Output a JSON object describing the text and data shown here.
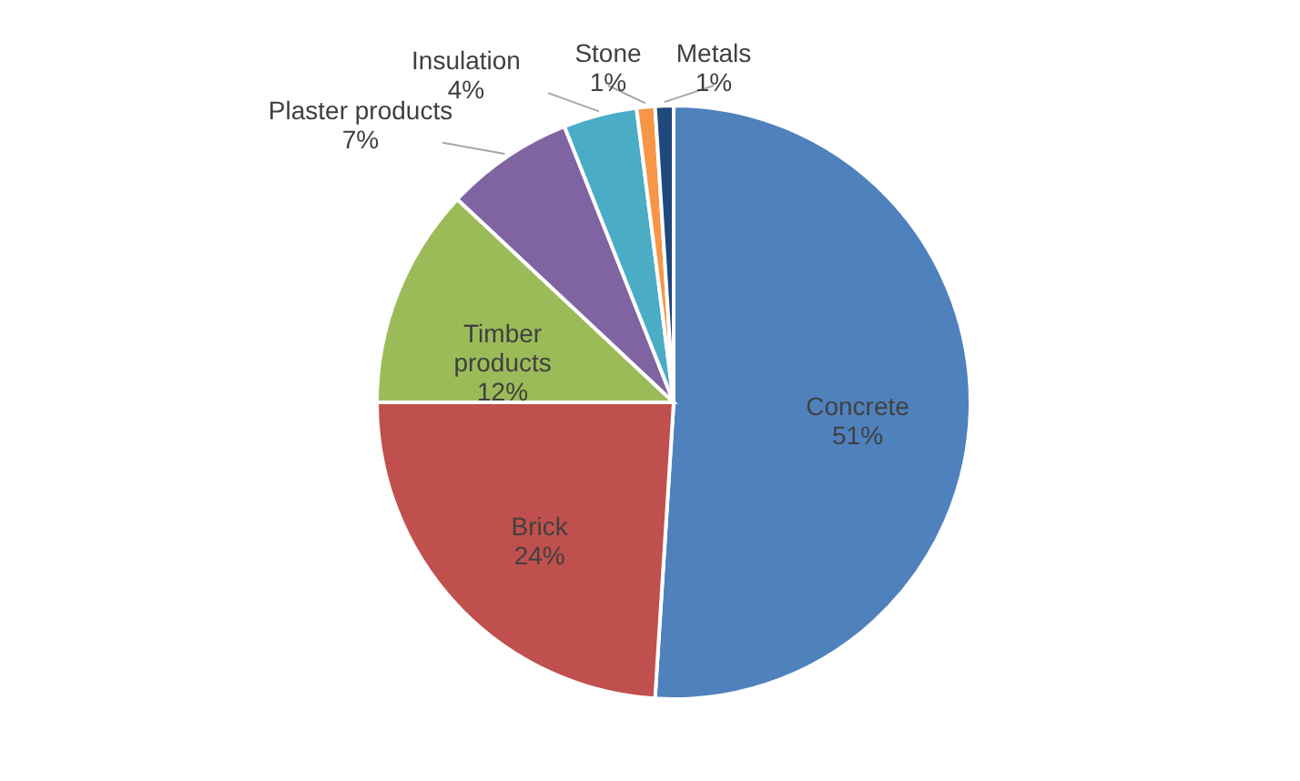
{
  "chart_data": {
    "type": "pie",
    "categories": [
      "Concrete",
      "Brick",
      "Timber products",
      "Plaster products",
      "Insulation",
      "Stone",
      "Metals"
    ],
    "values": [
      51,
      24,
      12,
      7,
      4,
      1,
      1
    ],
    "value_labels": [
      "51%",
      "24%",
      "12%",
      "7%",
      "4%",
      "1%",
      "1%"
    ],
    "colors": [
      "#4f81bd",
      "#c0504d",
      "#9bbb59",
      "#8064a2",
      "#4bacc6",
      "#f79646",
      "#1f497d"
    ]
  }
}
